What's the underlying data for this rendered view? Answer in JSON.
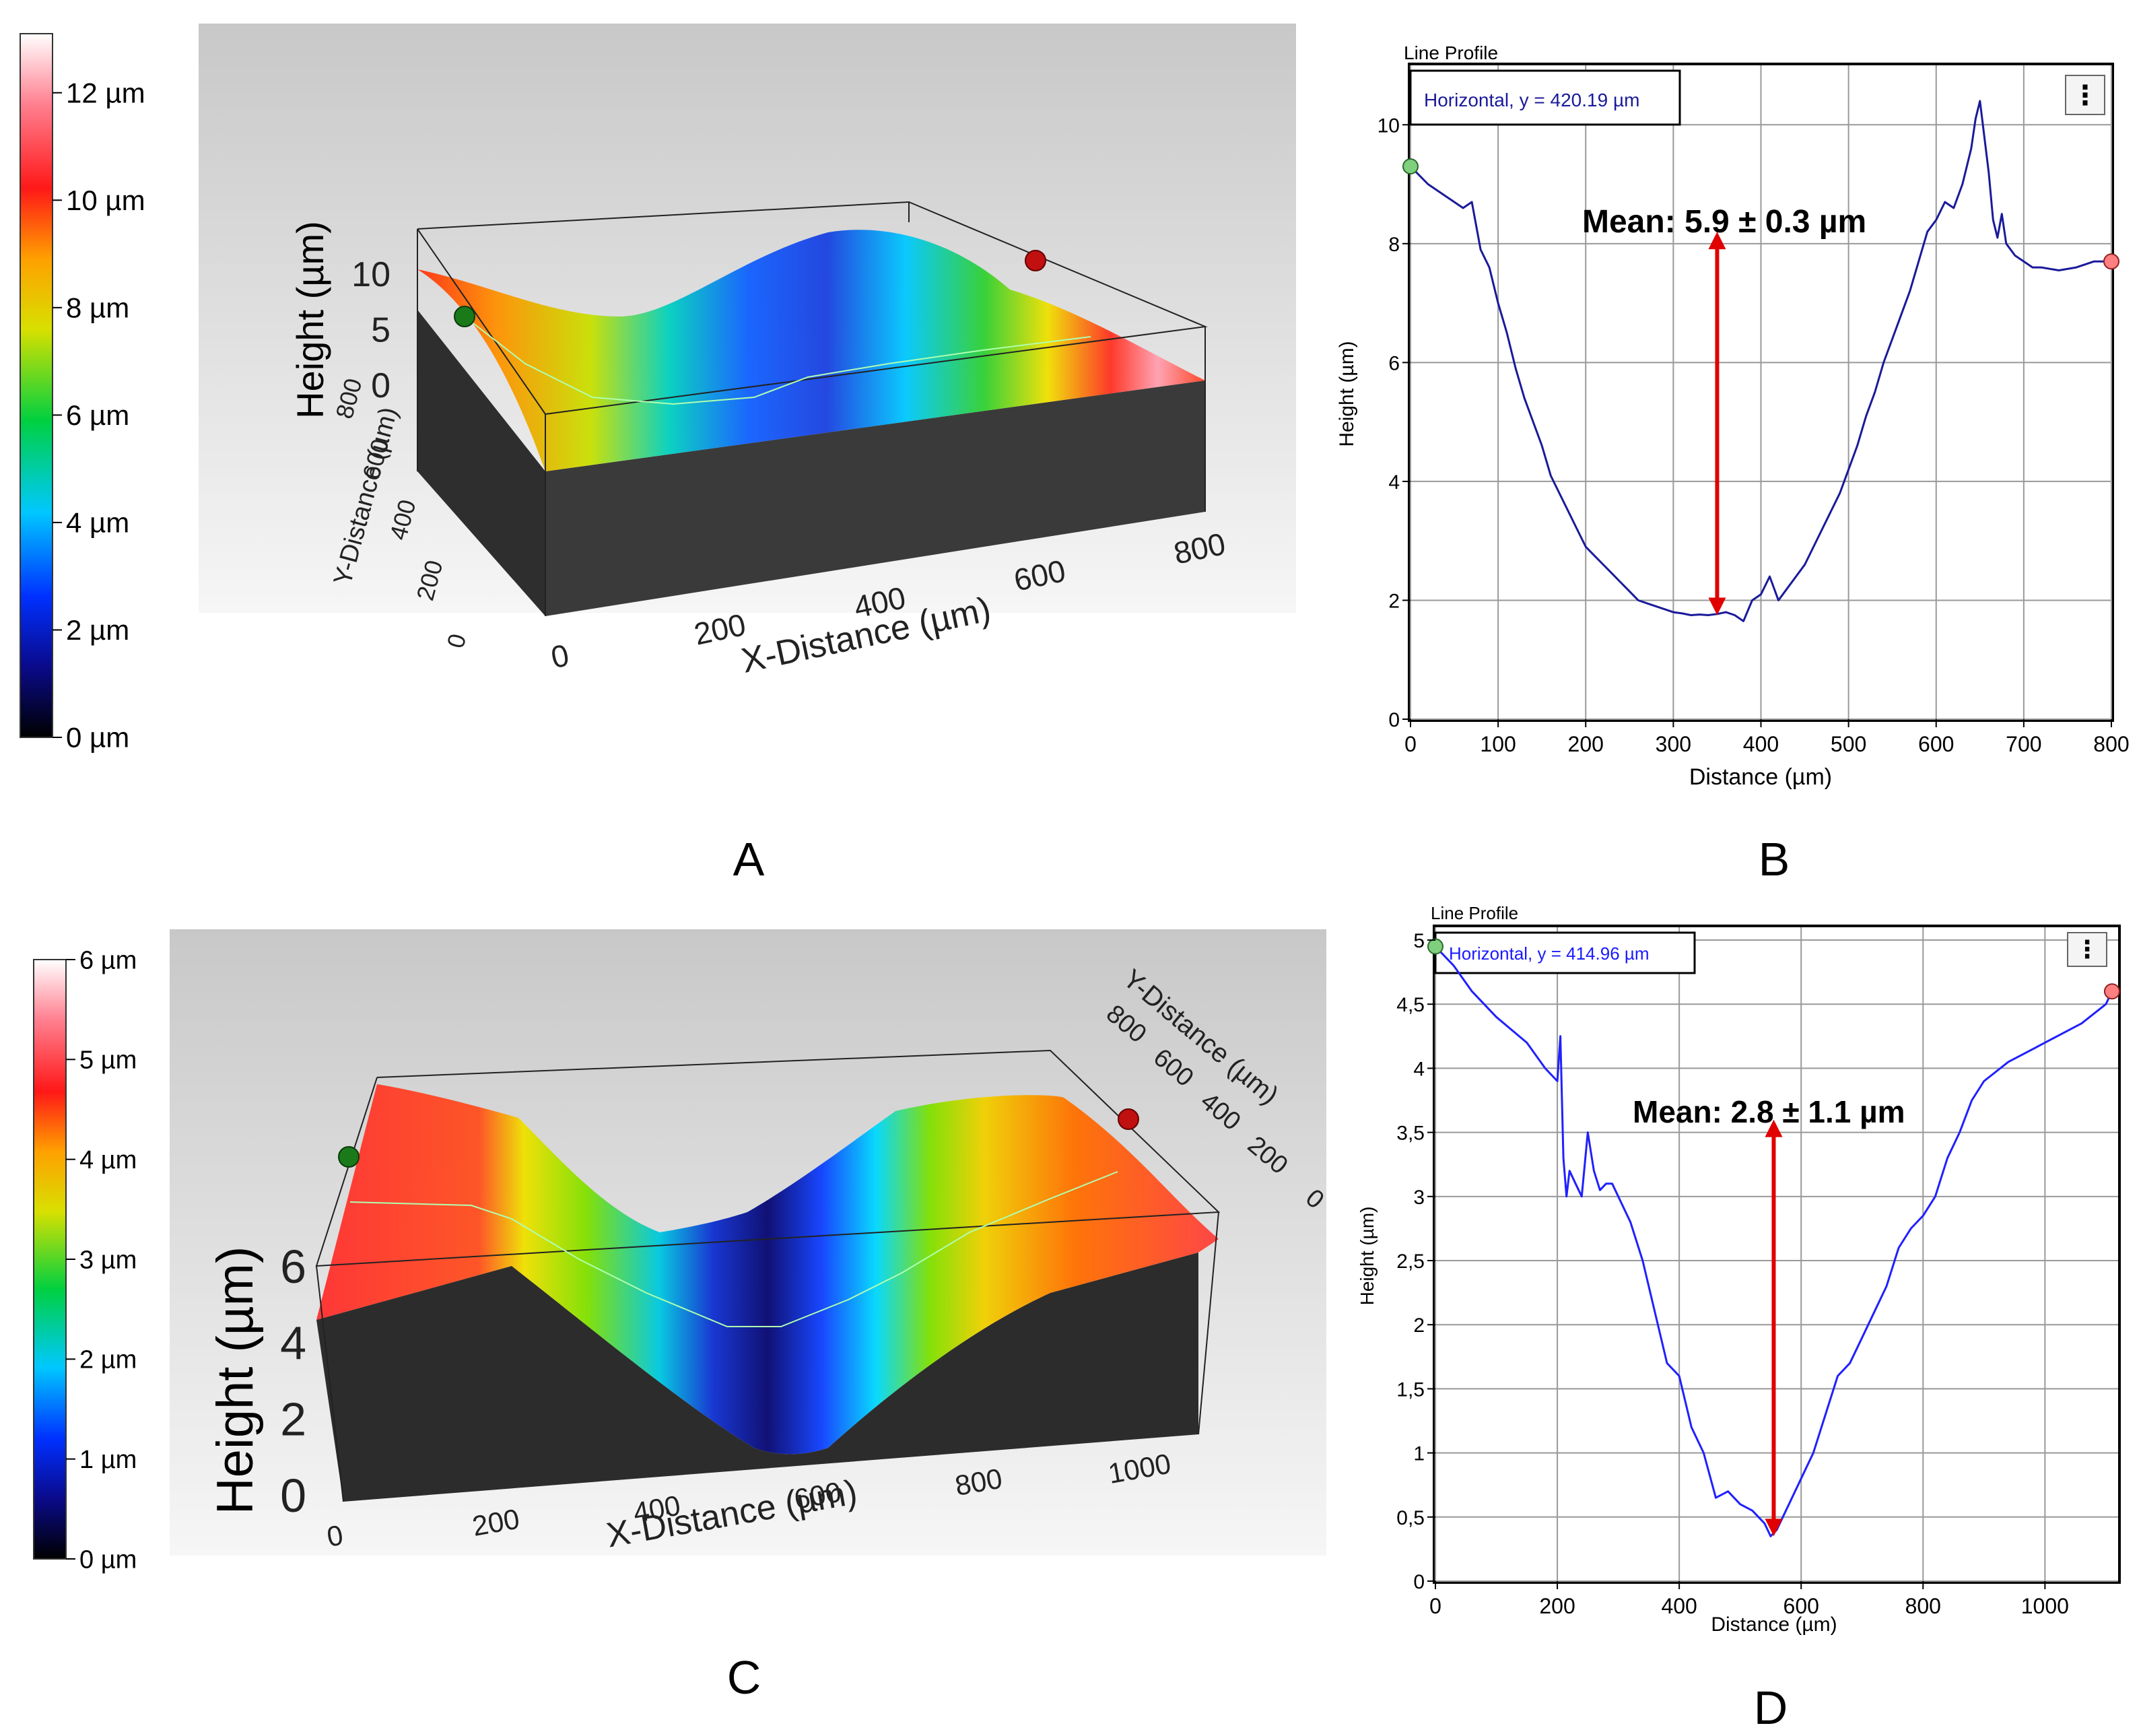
{
  "panel_labels": [
    "A",
    "B",
    "C",
    "D"
  ],
  "chart_data": [
    {
      "id": "A",
      "type": "surface3d",
      "colorbar": {
        "ticks": [
          "0 µm",
          "2 µm",
          "4 µm",
          "6 µm",
          "8 µm",
          "10 µm",
          "12 µm"
        ],
        "min": 0,
        "max": 13
      },
      "zlabel": "Height (µm)",
      "z_ticks": [
        "0",
        "5",
        "10"
      ],
      "xlabel": "X-Distance (µm)",
      "x_ticks": [
        "0",
        "200",
        "400",
        "600",
        "800"
      ],
      "ylabel": "Y-Distance (µm)",
      "y_ticks": [
        "0",
        "200",
        "400",
        "600",
        "800"
      ],
      "profile": {
        "x": [
          0,
          100,
          200,
          300,
          400,
          500,
          600,
          700,
          800
        ],
        "z": [
          9.3,
          7.6,
          4.3,
          2.0,
          1.8,
          3.8,
          8.0,
          8.0,
          7.7
        ]
      }
    },
    {
      "id": "B",
      "type": "line",
      "panel_title": "Line Profile",
      "legend": "Horizontal, y = 420.19 µm",
      "menu_glyph": "⋮",
      "annotation": "Mean: 5.9 ± 0.3 µm",
      "arrow": {
        "x": 350,
        "y_from": 1.75,
        "y_to": 8.2
      },
      "xlabel": "Distance (µm)",
      "ylabel": "Height (µm)",
      "xlim": [
        0,
        800
      ],
      "ylim": [
        0,
        11
      ],
      "x_ticks": [
        0,
        100,
        200,
        300,
        400,
        500,
        600,
        700,
        800
      ],
      "y_ticks": [
        0,
        2,
        4,
        6,
        8,
        10
      ],
      "x_tick_labels": [
        "0",
        "100",
        "200",
        "300",
        "400",
        "500",
        "600",
        "700",
        "800"
      ],
      "y_tick_labels": [
        "0",
        "2",
        "4",
        "6",
        "8",
        "10"
      ],
      "series": [
        {
          "name": "profile",
          "x": [
            0,
            20,
            40,
            60,
            70,
            75,
            80,
            90,
            100,
            110,
            120,
            130,
            140,
            150,
            160,
            170,
            180,
            190,
            200,
            210,
            220,
            230,
            240,
            250,
            260,
            270,
            280,
            290,
            300,
            310,
            320,
            330,
            340,
            350,
            360,
            370,
            380,
            390,
            400,
            410,
            420,
            430,
            440,
            450,
            460,
            470,
            480,
            490,
            500,
            510,
            520,
            530,
            540,
            550,
            560,
            570,
            580,
            590,
            600,
            610,
            620,
            630,
            640,
            645,
            650,
            655,
            660,
            665,
            670,
            675,
            680,
            690,
            700,
            710,
            720,
            740,
            760,
            780,
            800
          ],
          "y": [
            9.3,
            9.0,
            8.8,
            8.6,
            8.7,
            8.3,
            7.9,
            7.6,
            7.0,
            6.5,
            5.9,
            5.4,
            5.0,
            4.6,
            4.1,
            3.8,
            3.5,
            3.2,
            2.9,
            2.75,
            2.6,
            2.45,
            2.3,
            2.15,
            2.0,
            1.95,
            1.9,
            1.85,
            1.8,
            1.78,
            1.75,
            1.76,
            1.75,
            1.77,
            1.8,
            1.75,
            1.65,
            2.0,
            2.1,
            2.4,
            2.0,
            2.2,
            2.4,
            2.6,
            2.9,
            3.2,
            3.5,
            3.8,
            4.2,
            4.6,
            5.1,
            5.5,
            6.0,
            6.4,
            6.8,
            7.2,
            7.7,
            8.2,
            8.4,
            8.7,
            8.6,
            9.0,
            9.6,
            10.1,
            10.4,
            9.8,
            9.2,
            8.4,
            8.1,
            8.5,
            8.0,
            7.8,
            7.7,
            7.6,
            7.6,
            7.55,
            7.6,
            7.7,
            7.7
          ]
        }
      ],
      "endpoints": [
        "green",
        "red"
      ]
    },
    {
      "id": "C",
      "type": "surface3d",
      "colorbar": {
        "ticks": [
          "0 µm",
          "1 µm",
          "2 µm",
          "3 µm",
          "4 µm",
          "5 µm",
          "6 µm"
        ],
        "min": 0,
        "max": 6
      },
      "zlabel": "Height (µm)",
      "z_ticks": [
        "0",
        "2",
        "4",
        "6"
      ],
      "xlabel": "X-Distance (µm)",
      "x_ticks": [
        "0",
        "200",
        "400",
        "600",
        "800",
        "1000"
      ],
      "ylabel": "Y-Distance (µm)",
      "y_ticks": [
        "0",
        "200",
        "400",
        "600",
        "800"
      ],
      "profile": {
        "x": [
          0,
          200,
          300,
          400,
          500,
          550,
          600,
          700,
          800,
          1000,
          1110
        ],
        "z": [
          4.9,
          4.0,
          3.1,
          2.3,
          0.8,
          0.35,
          0.8,
          2.1,
          3.0,
          4.0,
          4.5
        ]
      }
    },
    {
      "id": "D",
      "type": "line",
      "panel_title": "Line Profile",
      "legend": "Horizontal, y = 414.96 µm",
      "menu_glyph": "⋮",
      "annotation": "Mean: 2.8 ± 1.1 µm",
      "arrow": {
        "x": 555,
        "y_from": 0.35,
        "y_to": 3.6
      },
      "xlabel": "Distance (µm)",
      "ylabel": "Height (µm)",
      "xlim": [
        0,
        1120
      ],
      "ylim": [
        0,
        5.1
      ],
      "x_ticks": [
        0,
        200,
        400,
        600,
        800,
        1000
      ],
      "y_ticks": [
        0,
        0.5,
        1,
        1.5,
        2,
        2.5,
        3,
        3.5,
        4,
        4.5,
        5
      ],
      "x_tick_labels": [
        "0",
        "200",
        "400",
        "600",
        "800",
        "1000"
      ],
      "y_tick_labels": [
        "0",
        "0,5",
        "1",
        "1,5",
        "2",
        "2,5",
        "3",
        "3,5",
        "4",
        "4,5",
        "5"
      ],
      "series": [
        {
          "name": "profile",
          "x": [
            0,
            30,
            60,
            100,
            150,
            180,
            200,
            205,
            210,
            215,
            220,
            230,
            240,
            250,
            260,
            270,
            280,
            290,
            300,
            320,
            340,
            360,
            380,
            400,
            420,
            440,
            460,
            480,
            500,
            520,
            540,
            550,
            560,
            580,
            600,
            620,
            640,
            660,
            680,
            700,
            720,
            740,
            760,
            780,
            800,
            820,
            840,
            860,
            880,
            900,
            940,
            980,
            1020,
            1060,
            1100,
            1110
          ],
          "y": [
            4.95,
            4.8,
            4.6,
            4.4,
            4.2,
            4.0,
            3.9,
            4.25,
            3.3,
            3.0,
            3.2,
            3.1,
            3.0,
            3.5,
            3.2,
            3.05,
            3.1,
            3.1,
            3.0,
            2.8,
            2.5,
            2.1,
            1.7,
            1.6,
            1.2,
            1.0,
            0.65,
            0.7,
            0.6,
            0.55,
            0.45,
            0.35,
            0.4,
            0.6,
            0.8,
            1.0,
            1.3,
            1.6,
            1.7,
            1.9,
            2.1,
            2.3,
            2.6,
            2.75,
            2.85,
            3.0,
            3.3,
            3.5,
            3.75,
            3.9,
            4.05,
            4.15,
            4.25,
            4.35,
            4.5,
            4.6
          ]
        }
      ],
      "endpoints": [
        "green",
        "red"
      ]
    }
  ]
}
